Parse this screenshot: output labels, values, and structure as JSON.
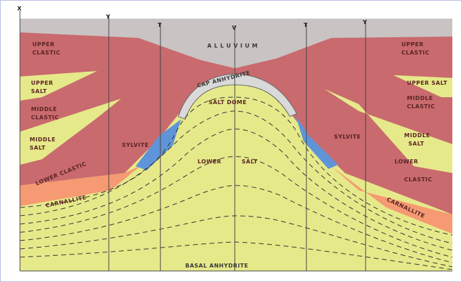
{
  "wells": [
    "X",
    "Y",
    "T",
    "V",
    "T",
    "Y"
  ],
  "labels": {
    "alluvium": "A L L U V I U M",
    "upper_clastic_left": [
      "UPPER",
      "CLASTIC"
    ],
    "upper_clastic_right": [
      "UPPER",
      "CLASTIC"
    ],
    "upper_salt_left": [
      "UPPER",
      "SALT"
    ],
    "upper_salt_right": "UPPER SALT",
    "middle_clastic_left": [
      "MIDDLE",
      "CLASTIC"
    ],
    "middle_clastic_right": [
      "MIDDLE",
      "CLASTIC"
    ],
    "middle_salt_left": [
      "MIDDLE",
      "SALT"
    ],
    "middle_salt_right": [
      "MIDDLE",
      "SALT"
    ],
    "lower_clastic_left": "LOWER CLASTIC",
    "lower_clastic_right": [
      "LOWER",
      "CLASTIC"
    ],
    "carnallite_left": "CARNALLITE",
    "carnallite_right": "CARNALLITE",
    "sylvite_left": "SYLVITE",
    "sylvite_right": "SYLVITE",
    "cap_anhydrite": "CAP ANHYDRITE",
    "salt_dome": "SALT DOME",
    "lower_salt": [
      "LOWER",
      "SALT"
    ],
    "basal_anhydrite": "BASAL ANHYDRITE"
  },
  "colors": {
    "clastic": "#c96a6e",
    "salt": "#e6e98a",
    "carnallite": "#f59a72",
    "sylvite": "#5f95d8",
    "alluvium": "#c9c3c3",
    "cap": "#d9d9d9"
  }
}
